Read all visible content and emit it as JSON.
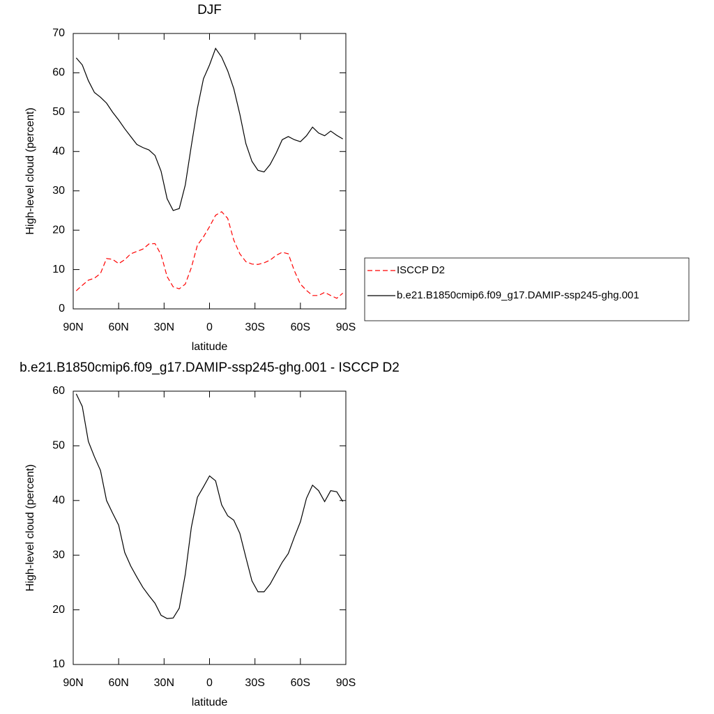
{
  "chart_data": [
    {
      "type": "line",
      "title": "DJF",
      "xlabel": "latitude",
      "ylabel": "High-level cloud (percent)",
      "x": [
        88,
        84,
        80,
        76,
        72,
        68,
        64,
        60,
        56,
        52,
        48,
        44,
        40,
        36,
        32,
        28,
        24,
        20,
        16,
        12,
        8,
        4,
        0,
        -4,
        -8,
        -12,
        -16,
        -20,
        -24,
        -28,
        -32,
        -36,
        -40,
        -44,
        -48,
        -52,
        -56,
        -60,
        -64,
        -68,
        -72,
        -76,
        -80,
        -84,
        -88
      ],
      "series": [
        {
          "name": "ISCCP D2",
          "color": "#ff0000",
          "line_style": "dashed",
          "values": [
            4.6,
            6,
            7.3,
            7.8,
            9,
            12.8,
            12.6,
            11.5,
            12.5,
            14,
            14.6,
            15.2,
            16.5,
            16.6,
            13.8,
            8.2,
            5.6,
            5.1,
            6.3,
            10.5,
            16.2,
            18.3,
            20.9,
            23.8,
            24.7,
            23,
            17.5,
            14,
            12,
            11.4,
            11.3,
            11.7,
            12.4,
            13.6,
            14.4,
            14,
            9.7,
            6.3,
            4.7,
            3.4,
            3.4,
            4.2,
            3.4,
            2.7,
            4
          ]
        },
        {
          "name": "b.e21.B1850cmip6.f09_g17.DAMIP-ssp245-ghg.001",
          "color": "#000000",
          "line_style": "solid",
          "values": [
            63.8,
            62,
            58,
            55,
            53.8,
            52.3,
            50,
            48,
            45.8,
            43.8,
            41.8,
            41,
            40.4,
            39,
            35,
            28,
            25,
            25.5,
            31.5,
            41.5,
            51,
            58.5,
            62,
            66.2,
            64,
            60.5,
            56,
            49.5,
            42,
            37.5,
            35.2,
            34.8,
            36.7,
            39.6,
            43,
            43.8,
            43,
            42.5,
            44,
            46.2,
            44.7,
            44,
            45.2,
            44.1,
            43.2
          ]
        }
      ],
      "xlim": [
        90,
        -90
      ],
      "xticks": [
        {
          "value": 90,
          "label": "90N"
        },
        {
          "value": 60,
          "label": "60N"
        },
        {
          "value": 30,
          "label": "30N"
        },
        0,
        {
          "value": -30,
          "label": "30S"
        },
        {
          "value": -60,
          "label": "60S"
        },
        {
          "value": -90,
          "label": "90S"
        }
      ],
      "ylim": [
        0,
        70
      ],
      "yticks": [
        0,
        10,
        20,
        30,
        40,
        50,
        60,
        70
      ],
      "legend": "right"
    },
    {
      "type": "line",
      "title": "b.e21.B1850cmip6.f09_g17.DAMIP-ssp245-ghg.001 - ISCCP D2",
      "xlabel": "latitude",
      "ylabel": "High-level cloud (percent)",
      "x": [
        88,
        84,
        80,
        76,
        72,
        68,
        64,
        60,
        56,
        52,
        48,
        44,
        40,
        36,
        32,
        28,
        24,
        20,
        16,
        12,
        8,
        4,
        0,
        -4,
        -8,
        -12,
        -16,
        -20,
        -24,
        -28,
        -32,
        -36,
        -40,
        -44,
        -48,
        -52,
        -56,
        -60,
        -64,
        -68,
        -72,
        -76,
        -80,
        -84,
        -88
      ],
      "series": [
        {
          "color": "#000000",
          "line_style": "solid",
          "values": [
            59.5,
            57.2,
            50.8,
            48,
            45.5,
            40,
            37.7,
            35.5,
            30.5,
            28,
            26,
            24.1,
            22.6,
            21.2,
            19,
            18.4,
            18.5,
            20.3,
            26.5,
            35.1,
            40.6,
            42.5,
            44.5,
            43.6,
            39.2,
            37.2,
            36.4,
            34,
            29.6,
            25.3,
            23.3,
            23.3,
            24.7,
            26.7,
            28.7,
            30.3,
            33.3,
            36.1,
            40.4,
            42.8,
            41.8,
            39.8,
            41.8,
            41.6,
            39.8
          ]
        }
      ],
      "xlim": [
        90,
        -90
      ],
      "xticks": [
        {
          "value": 90,
          "label": "90N"
        },
        {
          "value": 60,
          "label": "60N"
        },
        {
          "value": 30,
          "label": "30N"
        },
        0,
        {
          "value": -30,
          "label": "30S"
        },
        {
          "value": -60,
          "label": "60S"
        },
        {
          "value": -90,
          "label": "90S"
        }
      ],
      "ylim": [
        10,
        60
      ],
      "yticks": [
        10,
        20,
        30,
        40,
        50,
        60
      ]
    }
  ]
}
